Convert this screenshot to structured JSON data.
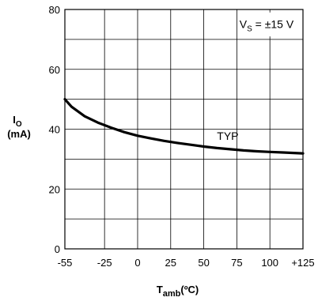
{
  "chart_data": {
    "type": "line",
    "title": "",
    "xlabel": {
      "main": "T",
      "sub": "amb",
      "unit": "(ºC)"
    },
    "ylabel": {
      "main": "I",
      "sub": "O",
      "unit": "(mA)"
    },
    "xlim": [
      -55,
      125
    ],
    "ylim": [
      0,
      80
    ],
    "x_ticks": [
      "-55",
      "-25",
      "0",
      "25",
      "50",
      "75",
      "100",
      "+125"
    ],
    "x_tick_values": [
      -55,
      -25,
      0,
      25,
      50,
      75,
      100,
      125
    ],
    "y_ticks": [
      "0",
      "20",
      "40",
      "60",
      "80"
    ],
    "y_tick_values": [
      0,
      20,
      40,
      60,
      80
    ],
    "grid": true,
    "condition": {
      "main": "V",
      "sub": "S",
      "rest": " = ±15 V"
    },
    "series": [
      {
        "name": "TYP",
        "x": [
          -55,
          -50,
          -40,
          -30,
          -20,
          -10,
          0,
          10,
          20,
          30,
          40,
          50,
          60,
          70,
          80,
          90,
          100,
          110,
          125
        ],
        "y": [
          50,
          47.5,
          44.3,
          42.2,
          40.5,
          39.0,
          37.8,
          36.9,
          36.1,
          35.4,
          34.8,
          34.2,
          33.7,
          33.3,
          32.9,
          32.6,
          32.4,
          32.2,
          31.9
        ]
      }
    ]
  }
}
